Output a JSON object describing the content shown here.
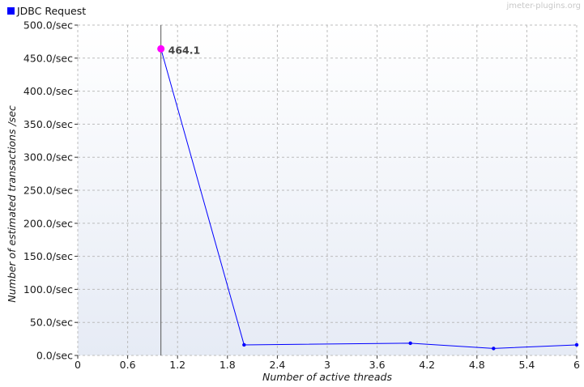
{
  "watermark": "jmeter-plugins.org",
  "colors": {
    "series": "#0000ff",
    "highlight": "#ff00ff",
    "grid": "#bcbcbc",
    "plot_bg_top": "#ffffff",
    "plot_bg_bottom": "#e6ebf5",
    "crosshair": "#555555"
  },
  "chart_data": {
    "type": "line",
    "title": "",
    "xlabel": "Number of active threads",
    "ylabel": "Number of estimated transactions /sec",
    "xlim": [
      0,
      6
    ],
    "ylim": [
      0,
      500
    ],
    "x_ticks": [
      0,
      0.6,
      1.2,
      1.8,
      2.4,
      3,
      3.6,
      4.2,
      4.8,
      5.4,
      6
    ],
    "x_tick_labels": [
      "0",
      "0.6",
      "1.2",
      "1.8",
      "2.4",
      "3",
      "3.6",
      "4.2",
      "4.8",
      "5.4",
      "6"
    ],
    "y_ticks": [
      0,
      50,
      100,
      150,
      200,
      250,
      300,
      350,
      400,
      450,
      500
    ],
    "y_tick_labels": [
      "0.0/sec",
      "50.0/sec",
      "100.0/sec",
      "150.0/sec",
      "200.0/sec",
      "250.0/sec",
      "300.0/sec",
      "350.0/sec",
      "400.0/sec",
      "450.0/sec",
      "500.0/sec"
    ],
    "grid": true,
    "legend_position": "top-left",
    "series": [
      {
        "name": "JDBC Request",
        "points": [
          {
            "x": 1,
            "y": 464.1
          },
          {
            "x": 2,
            "y": 16
          },
          {
            "x": 4,
            "y": 18.5
          },
          {
            "x": 5,
            "y": 10.5
          },
          {
            "x": 6,
            "y": 16
          }
        ]
      }
    ],
    "highlight": {
      "series": 0,
      "point": 0,
      "label": "464.1"
    }
  }
}
